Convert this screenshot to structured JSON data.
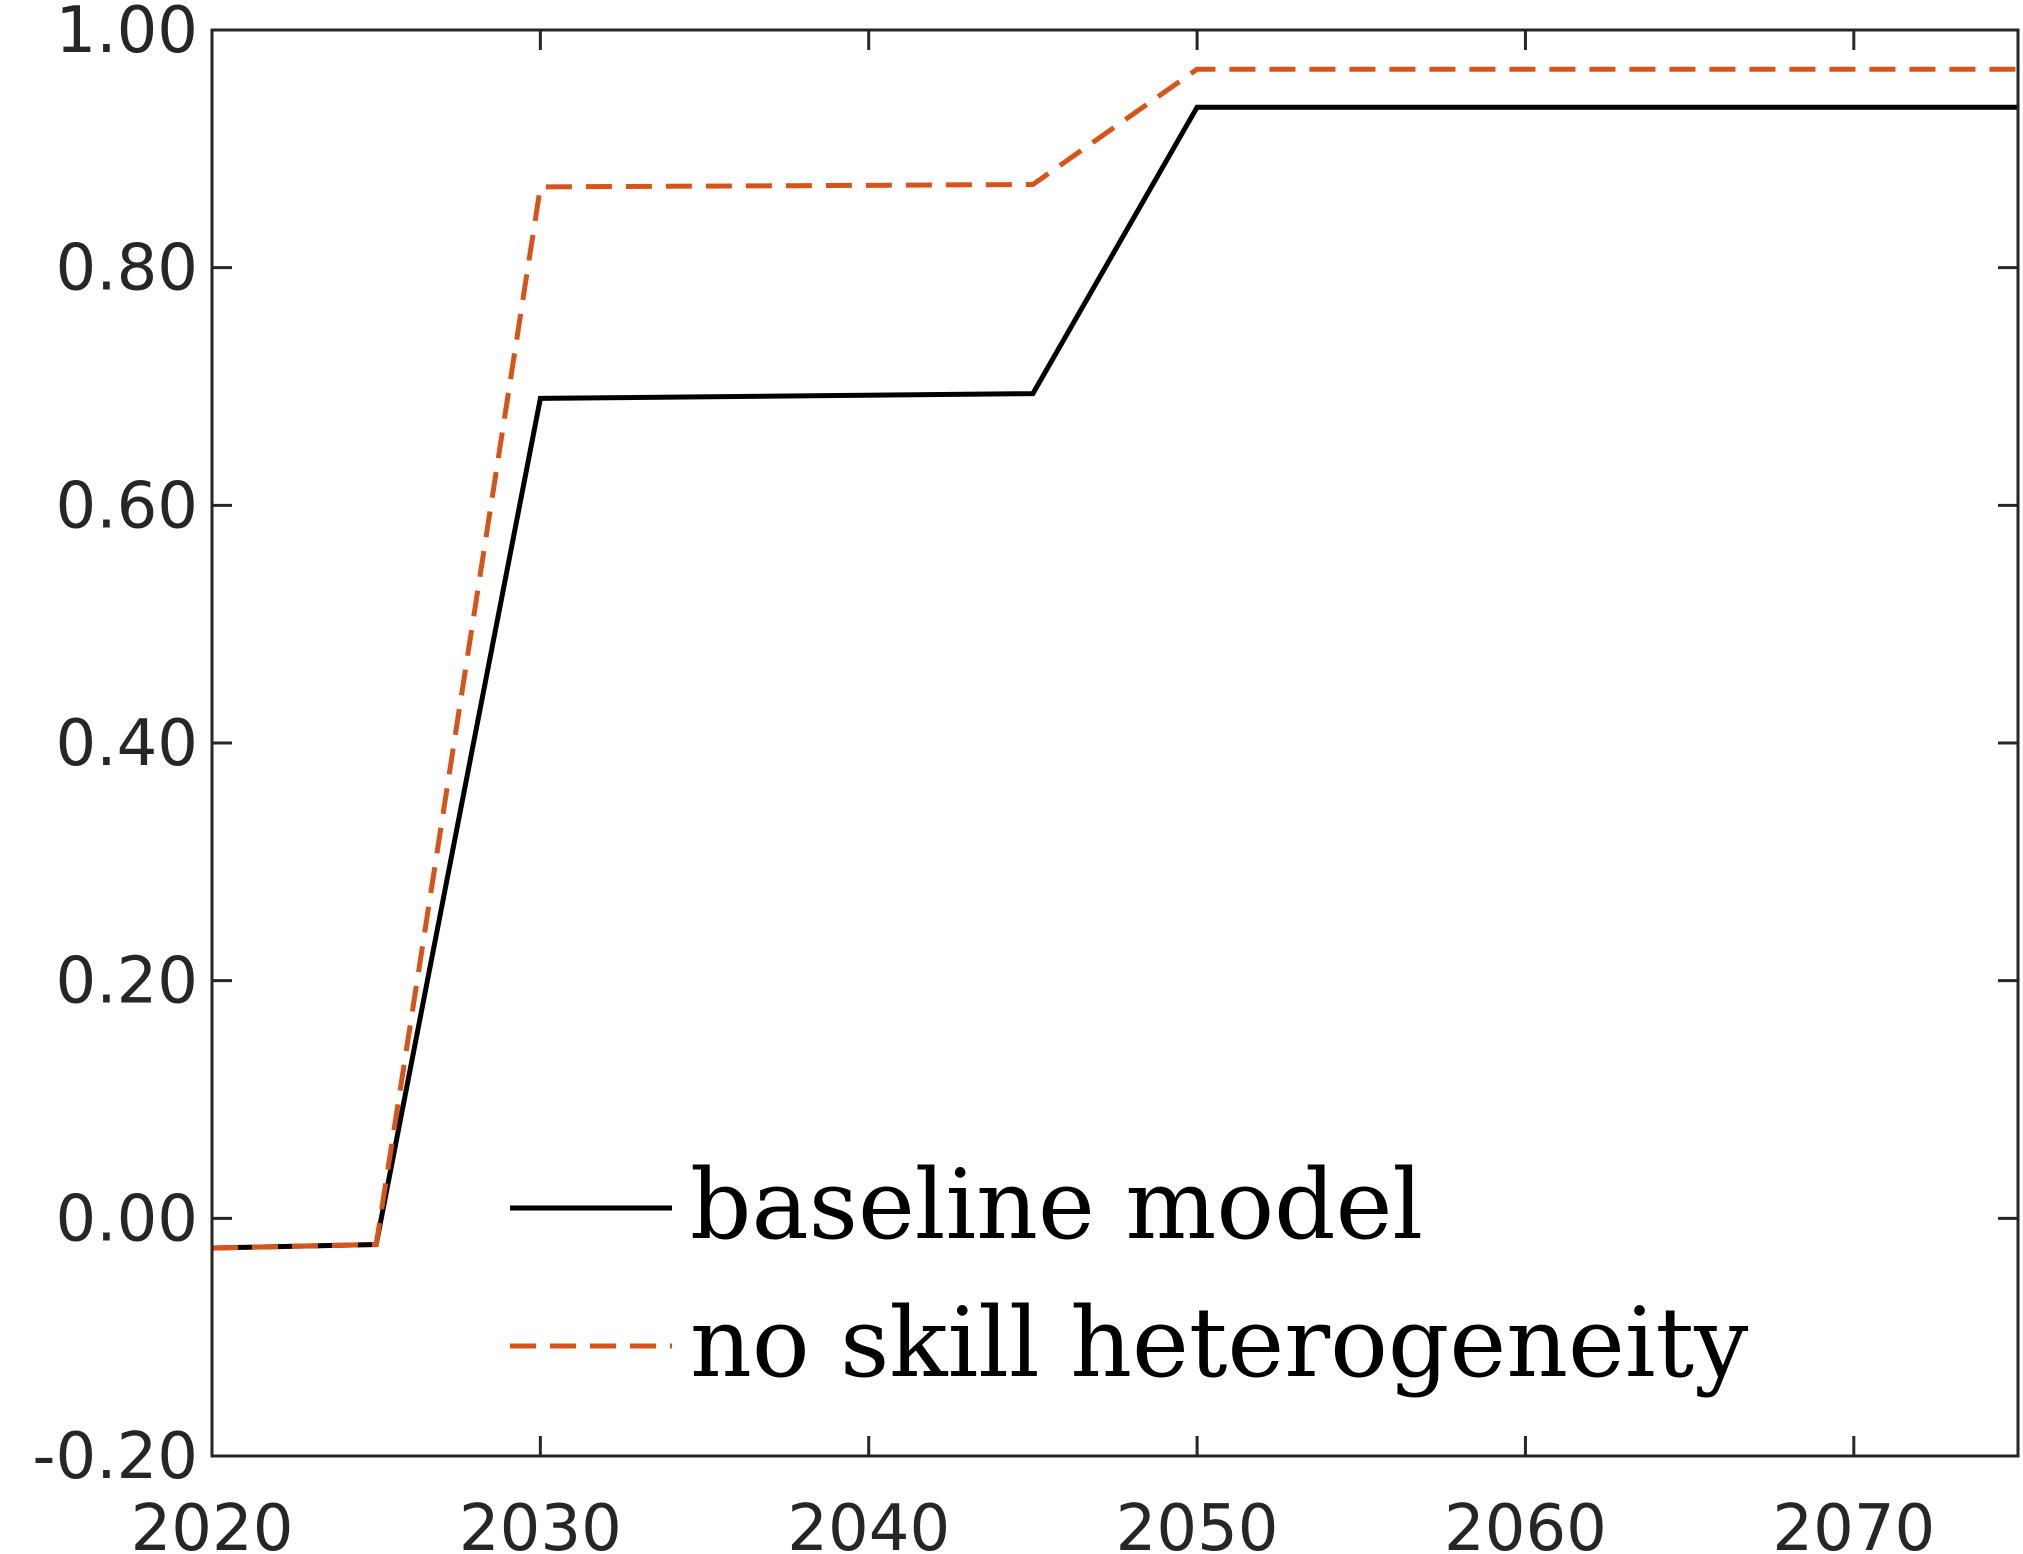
{
  "chart_data": {
    "type": "line",
    "title": "",
    "xlabel": "",
    "ylabel": "",
    "xlim": [
      2020,
      2075
    ],
    "ylim": [
      -0.2,
      1.0
    ],
    "x_ticks": [
      2020,
      2030,
      2040,
      2050,
      2060,
      2070
    ],
    "x_tick_labels": [
      "2020",
      "2030",
      "2040",
      "2050",
      "2060",
      "2070"
    ],
    "y_ticks": [
      -0.2,
      0.0,
      0.2,
      0.4,
      0.6,
      0.8,
      1.0
    ],
    "y_tick_labels": [
      "-0.20",
      "0.00",
      "0.20",
      "0.40",
      "0.60",
      "0.80",
      "1.00"
    ],
    "grid": false,
    "legend_position": "bottom-center",
    "series": [
      {
        "name": "baseline model",
        "color": "#000000",
        "style": "solid",
        "x": [
          2020,
          2025,
          2030,
          2045,
          2050,
          2075
        ],
        "y": [
          -0.025,
          -0.022,
          0.69,
          0.694,
          0.935,
          0.935
        ]
      },
      {
        "name": "no skill heterogeneity",
        "color": "#D95319",
        "style": "dashed",
        "x": [
          2020,
          2025,
          2030,
          2045,
          2050,
          2075
        ],
        "y": [
          -0.025,
          -0.022,
          0.868,
          0.87,
          0.967,
          0.967
        ]
      }
    ]
  }
}
